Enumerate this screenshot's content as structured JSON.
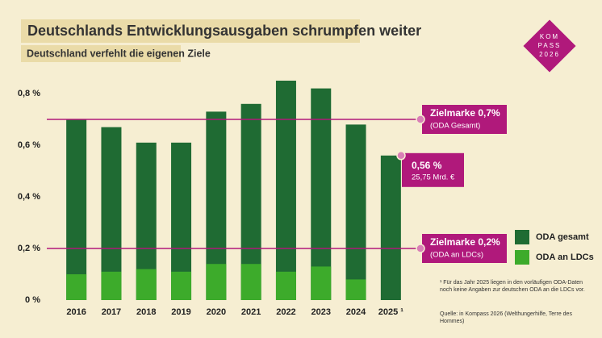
{
  "title": "Deutschlands Entwicklungsausgaben schrumpfen weiter",
  "subtitle": "Deutschland verfehlt die eigenen Ziele",
  "logo": [
    "KOM",
    "PASS",
    "2026"
  ],
  "footnote": "¹ Für das Jahr 2025 liegen in den vorläufigen ODA-Daten noch keine Angaben zur deutschen ODA an die LDCs vor.",
  "source": "Quelle: in Kompass 2026 (Welthungerhilfe, Terre des Hommes)",
  "chart_data": {
    "type": "bar",
    "categories": [
      "2016",
      "2017",
      "2018",
      "2019",
      "2020",
      "2021",
      "2022",
      "2023",
      "2024",
      "2025 ¹"
    ],
    "series": [
      {
        "name": "ODA gesamt",
        "color": "#1f6b33",
        "values": [
          0.7,
          0.67,
          0.61,
          0.61,
          0.73,
          0.76,
          0.85,
          0.82,
          0.68,
          0.56
        ]
      },
      {
        "name": "ODA an LDCs",
        "color": "#3dab2b",
        "values": [
          0.1,
          0.11,
          0.12,
          0.11,
          0.14,
          0.14,
          0.11,
          0.13,
          0.08,
          null
        ]
      }
    ],
    "ylim": [
      0,
      0.86
    ],
    "yticks": [
      {
        "value": 0,
        "label": "0 %"
      },
      {
        "value": 0.2,
        "label": "0,2 %"
      },
      {
        "value": 0.4,
        "label": "0,4 %"
      },
      {
        "value": 0.6,
        "label": "0,6 %"
      },
      {
        "value": 0.8,
        "label": "0,8 %"
      }
    ],
    "reference_lines": [
      {
        "value": 0.7,
        "label": "Zielmarke 0,7%",
        "sublabel": "(ODA Gesamt)"
      },
      {
        "value": 0.2,
        "label": "Zielmarke 0,2%",
        "sublabel": "(ODA an LDCs)"
      }
    ],
    "annotation": {
      "value": 0.56,
      "label": "0,56 %",
      "sublabel": "25,75 Mrd. €"
    },
    "accent_color": "#b0197b"
  }
}
